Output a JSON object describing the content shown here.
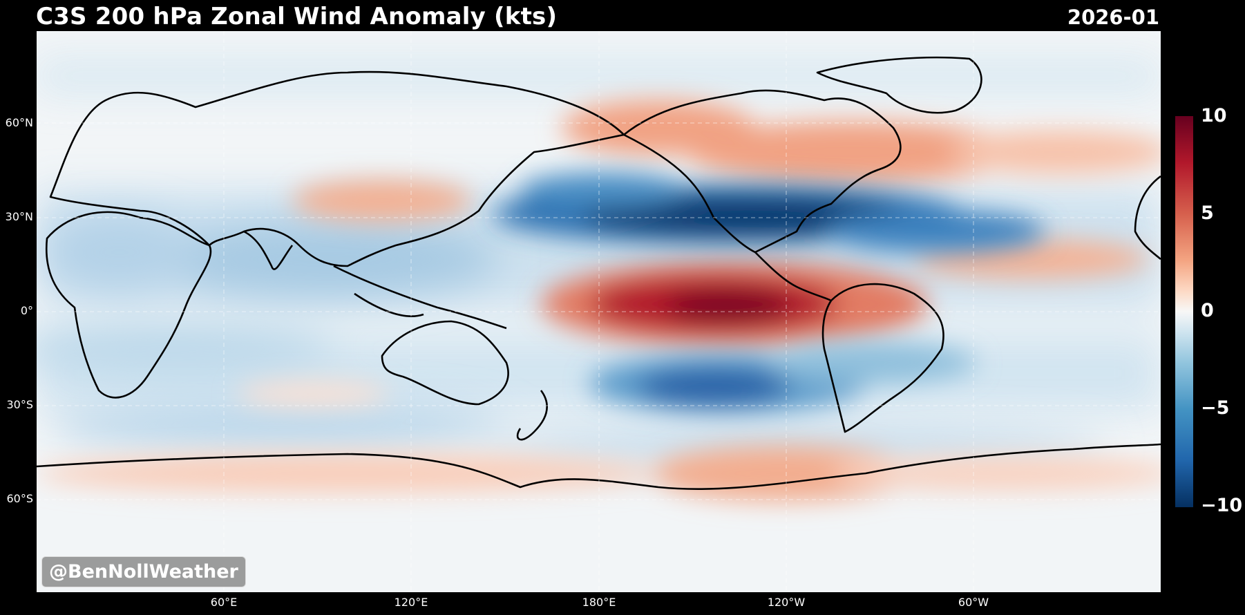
{
  "title": "C3S 200 hPa Zonal Wind Anomaly (kts)",
  "date": "2026-01",
  "lat_labels": [
    "60°N",
    "30°N",
    "0°",
    "30°S",
    "60°S"
  ],
  "lon_labels": [
    "60°E",
    "120°E",
    "180°E",
    "120°W",
    "60°W"
  ],
  "colorbar": {
    "ticks": [
      "10",
      "5",
      "0",
      "−5",
      "−10"
    ],
    "min": -10,
    "max": 10,
    "colormap": "RdBu_r"
  },
  "watermark": "@BenNollWeather",
  "colors": {
    "positive": "#b2182b",
    "negative": "#2166ac",
    "neutral": "#f7f7f7"
  }
}
